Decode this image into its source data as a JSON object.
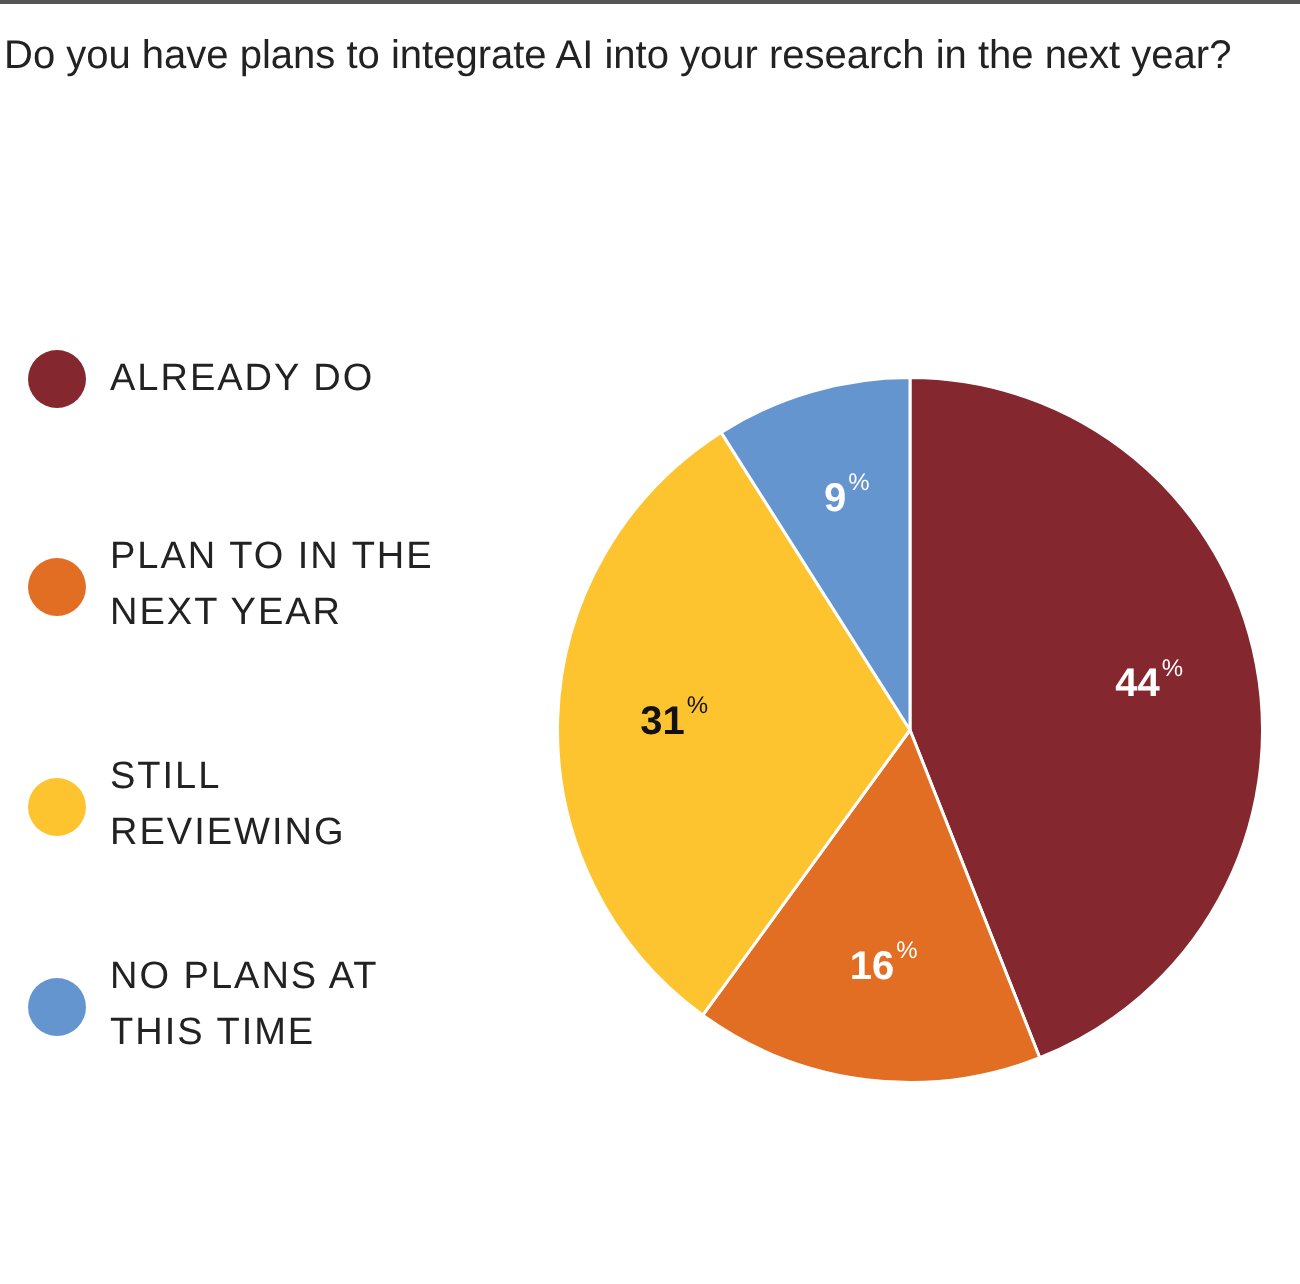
{
  "chart_data": {
    "type": "pie",
    "title": "Do you have plans to integrate AI into your research in the next year?",
    "categories": [
      "ALREADY DO",
      "PLAN TO IN THE NEXT YEAR",
      "STILL REVIEWING",
      "NO PLANS AT THIS TIME"
    ],
    "values": [
      44,
      16,
      31,
      9
    ],
    "colors": [
      "#84272e",
      "#e16e22",
      "#fdc42f",
      "#6595cf"
    ],
    "value_labels": [
      "44$^{%}$",
      "16$^{%}$",
      "31$^{%}$",
      "9$^{%}$"
    ],
    "legend": "left"
  }
}
